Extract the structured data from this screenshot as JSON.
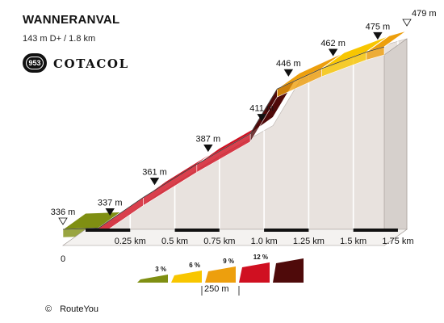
{
  "header": {
    "title": "WANNERANVAL",
    "subtitle": "143 m D+ / 1.8 km",
    "badge_number": "953",
    "badge_text": "COTACOL"
  },
  "credit": {
    "symbol": "©",
    "text": "RouteYou"
  },
  "colors": {
    "3": "#7f8f12",
    "6": "#f8c600",
    "9": "#ed9f0d",
    "12": "#d01021",
    "15": "#4f0a0a",
    "wall": "#e8e2de",
    "grid": "#ffffff"
  },
  "chart_data": {
    "type": "area",
    "title": "WANNERANVAL",
    "xlabel": "",
    "ylabel": "",
    "x_unit": "km",
    "y_unit": "m",
    "xlim": [
      0,
      1.8
    ],
    "ylim": [
      336,
      479
    ],
    "x_ticks": [
      {
        "value": 0,
        "label": "0"
      },
      {
        "value": 0.25,
        "label": "0.25 km"
      },
      {
        "value": 0.5,
        "label": "0.5 km"
      },
      {
        "value": 0.75,
        "label": "0.75 km"
      },
      {
        "value": 1.0,
        "label": "1.0 km"
      },
      {
        "value": 1.25,
        "label": "1.25 km"
      },
      {
        "value": 1.5,
        "label": "1.5 km"
      },
      {
        "value": 1.75,
        "label": "1.75 km"
      }
    ],
    "points": [
      {
        "x": 0,
        "y": 336,
        "label": "336 m",
        "marker": "start"
      },
      {
        "x": 0.2,
        "y": 337,
        "label": "337 m",
        "marker": "point"
      },
      {
        "x": 0.45,
        "y": 361,
        "label": "361 m",
        "marker": "point"
      },
      {
        "x": 0.75,
        "y": 387,
        "label": "387 m",
        "marker": "point"
      },
      {
        "x": 1.05,
        "y": 411,
        "label": "411 m",
        "marker": "point"
      },
      {
        "x": 1.2,
        "y": 446,
        "label": "446 m",
        "marker": "point"
      },
      {
        "x": 1.45,
        "y": 462,
        "label": "462 m",
        "marker": "point"
      },
      {
        "x": 1.7,
        "y": 475,
        "label": "475 m",
        "marker": "point"
      },
      {
        "x": 1.8,
        "y": 479,
        "label": "479 m",
        "marker": "end"
      }
    ],
    "segments": [
      {
        "x0": 0,
        "x1": 0.2,
        "grade": 3
      },
      {
        "x0": 0.2,
        "x1": 0.45,
        "grade": 12
      },
      {
        "x0": 0.45,
        "x1": 0.75,
        "grade": 12
      },
      {
        "x0": 0.75,
        "x1": 1.05,
        "grade": 12
      },
      {
        "x0": 1.05,
        "x1": 1.2,
        "grade": 15
      },
      {
        "x0": 1.2,
        "x1": 1.45,
        "grade": 9
      },
      {
        "x0": 1.45,
        "x1": 1.7,
        "grade": 6
      },
      {
        "x0": 1.7,
        "x1": 1.8,
        "grade": 9
      }
    ],
    "legend": {
      "placement": "bottom-center",
      "items": [
        {
          "grade": 3,
          "label": "3 %"
        },
        {
          "grade": 6,
          "label": "6 %"
        },
        {
          "grade": 9,
          "label": "9 %"
        },
        {
          "grade": 12,
          "label": "12 %"
        },
        {
          "grade": 15,
          "label": ""
        }
      ],
      "scale_label": "250 m"
    }
  }
}
